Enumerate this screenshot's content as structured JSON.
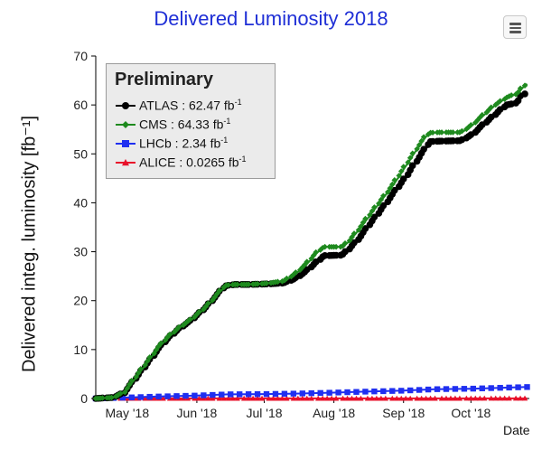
{
  "chart_data": {
    "type": "line",
    "title": "Delivered Luminosity 2018",
    "xlabel": "Date",
    "ylabel": "Delivered integ. luminosity [fb⁻¹]",
    "xlim": [
      "2018-04-17",
      "2018-10-27"
    ],
    "ylim": [
      0,
      70
    ],
    "xticks": [
      {
        "date": "2018-05-01",
        "label": "May '18"
      },
      {
        "date": "2018-06-01",
        "label": "Jun '18"
      },
      {
        "date": "2018-07-01",
        "label": "Jul '18"
      },
      {
        "date": "2018-08-01",
        "label": "Aug '18"
      },
      {
        "date": "2018-09-01",
        "label": "Sep '18"
      },
      {
        "date": "2018-10-01",
        "label": "Oct '18"
      }
    ],
    "yticks": [
      0,
      10,
      20,
      30,
      40,
      50,
      60,
      70
    ],
    "grid": false,
    "legend": {
      "title": "Preliminary",
      "placement": "top-left",
      "entries": [
        {
          "name": "ATLAS",
          "value": "62.47",
          "unit": "fb",
          "exp": "-1"
        },
        {
          "name": "CMS",
          "value": "64.33",
          "unit": "fb",
          "exp": "-1"
        },
        {
          "name": "LHCb",
          "value": "2.34",
          "unit": "fb",
          "exp": "-1"
        },
        {
          "name": "ALICE",
          "value": "0.0265",
          "unit": "fb",
          "exp": "-1"
        }
      ]
    },
    "series": [
      {
        "name": "ATLAS",
        "color": "#000000",
        "marker": "circle",
        "points": [
          [
            "2018-04-17",
            0
          ],
          [
            "2018-04-25",
            0.2
          ],
          [
            "2018-04-30",
            1.2
          ],
          [
            "2018-05-05",
            4
          ],
          [
            "2018-05-10",
            7
          ],
          [
            "2018-05-15",
            10
          ],
          [
            "2018-05-20",
            12.5
          ],
          [
            "2018-05-25",
            14.5
          ],
          [
            "2018-05-30",
            16
          ],
          [
            "2018-06-05",
            18.5
          ],
          [
            "2018-06-10",
            21
          ],
          [
            "2018-06-14",
            23
          ],
          [
            "2018-06-18",
            23.3
          ],
          [
            "2018-06-24",
            23.3
          ],
          [
            "2018-07-02",
            23.4
          ],
          [
            "2018-07-10",
            23.6
          ],
          [
            "2018-07-15",
            24.5
          ],
          [
            "2018-07-20",
            26
          ],
          [
            "2018-07-25",
            28
          ],
          [
            "2018-07-28",
            29.2
          ],
          [
            "2018-08-05",
            29.3
          ],
          [
            "2018-08-08",
            30.5
          ],
          [
            "2018-08-13",
            33
          ],
          [
            "2018-08-18",
            36
          ],
          [
            "2018-08-23",
            39
          ],
          [
            "2018-08-28",
            42
          ],
          [
            "2018-09-02",
            45
          ],
          [
            "2018-09-07",
            48.5
          ],
          [
            "2018-09-11",
            51
          ],
          [
            "2018-09-13",
            52.5
          ],
          [
            "2018-09-17",
            52.6
          ],
          [
            "2018-09-27",
            52.7
          ],
          [
            "2018-10-02",
            54
          ],
          [
            "2018-10-07",
            56
          ],
          [
            "2018-10-12",
            58
          ],
          [
            "2018-10-17",
            60
          ],
          [
            "2018-10-20",
            60.2
          ],
          [
            "2018-10-22",
            60.5
          ],
          [
            "2018-10-24",
            62
          ],
          [
            "2018-10-26",
            62.47
          ]
        ]
      },
      {
        "name": "CMS",
        "color": "#1e8a1e",
        "marker": "diamond",
        "points": [
          [
            "2018-04-17",
            0
          ],
          [
            "2018-04-25",
            0.2
          ],
          [
            "2018-04-30",
            1.3
          ],
          [
            "2018-05-05",
            4.3
          ],
          [
            "2018-05-10",
            7.4
          ],
          [
            "2018-05-15",
            10.4
          ],
          [
            "2018-05-20",
            12.8
          ],
          [
            "2018-05-25",
            14.7
          ],
          [
            "2018-05-30",
            16.2
          ],
          [
            "2018-06-05",
            18.6
          ],
          [
            "2018-06-10",
            21.1
          ],
          [
            "2018-06-14",
            23.1
          ],
          [
            "2018-06-18",
            23.3
          ],
          [
            "2018-06-24",
            23.3
          ],
          [
            "2018-07-02",
            23.5
          ],
          [
            "2018-07-10",
            24
          ],
          [
            "2018-07-15",
            25.5
          ],
          [
            "2018-07-20",
            27.5
          ],
          [
            "2018-07-25",
            30
          ],
          [
            "2018-07-28",
            31
          ],
          [
            "2018-08-05",
            31
          ],
          [
            "2018-08-08",
            32.2
          ],
          [
            "2018-08-13",
            35
          ],
          [
            "2018-08-18",
            38
          ],
          [
            "2018-08-23",
            41
          ],
          [
            "2018-08-28",
            44
          ],
          [
            "2018-09-02",
            47.5
          ],
          [
            "2018-09-07",
            51
          ],
          [
            "2018-09-11",
            53.5
          ],
          [
            "2018-09-13",
            54.3
          ],
          [
            "2018-09-17",
            54.4
          ],
          [
            "2018-09-27",
            54.4
          ],
          [
            "2018-10-02",
            56
          ],
          [
            "2018-10-07",
            58
          ],
          [
            "2018-10-12",
            60
          ],
          [
            "2018-10-17",
            61.5
          ],
          [
            "2018-10-20",
            62
          ],
          [
            "2018-10-22",
            62.3
          ],
          [
            "2018-10-24",
            63.5
          ],
          [
            "2018-10-26",
            64.33
          ]
        ]
      },
      {
        "name": "LHCb",
        "color": "#1f2ff0",
        "marker": "square",
        "points": [
          [
            "2018-04-17",
            0
          ],
          [
            "2018-05-01",
            0.2
          ],
          [
            "2018-05-15",
            0.4
          ],
          [
            "2018-06-01",
            0.6
          ],
          [
            "2018-06-15",
            0.85
          ],
          [
            "2018-07-01",
            0.9
          ],
          [
            "2018-07-15",
            1.0
          ],
          [
            "2018-08-01",
            1.2
          ],
          [
            "2018-08-15",
            1.4
          ],
          [
            "2018-09-01",
            1.6
          ],
          [
            "2018-09-15",
            1.9
          ],
          [
            "2018-10-01",
            2.0
          ],
          [
            "2018-10-15",
            2.2
          ],
          [
            "2018-10-26",
            2.34
          ]
        ]
      },
      {
        "name": "ALICE",
        "color": "#e8102a",
        "marker": "triangle",
        "points": [
          [
            "2018-04-17",
            0
          ],
          [
            "2018-06-01",
            0.01
          ],
          [
            "2018-08-01",
            0.015
          ],
          [
            "2018-10-26",
            0.0265
          ]
        ]
      }
    ]
  }
}
